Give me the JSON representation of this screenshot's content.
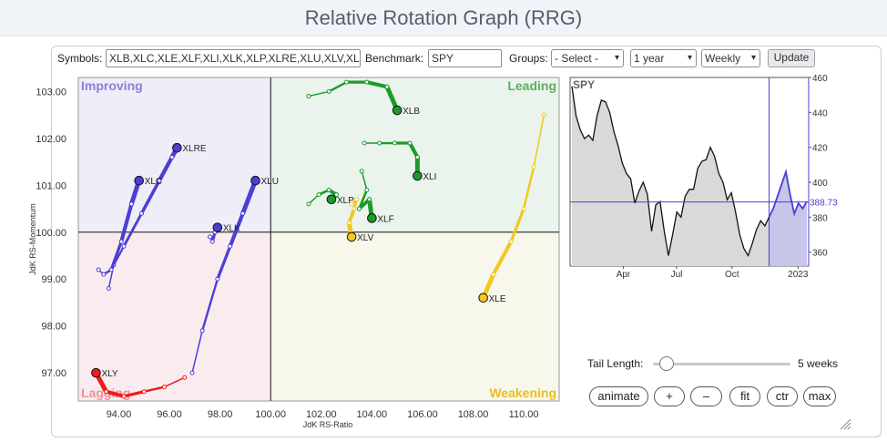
{
  "page": {
    "title": "Relative Rotation Graph (RRG)"
  },
  "toolbar": {
    "symbols_label": "Symbols:",
    "symbols_value": "XLB,XLC,XLE,XLF,XLI,XLK,XLP,XLRE,XLU,XLV,XL",
    "benchmark_label": "Benchmark:",
    "benchmark_value": "SPY",
    "groups_label": "Groups:",
    "groups_value": "- Select -",
    "period_value": "1 year",
    "interval_value": "Weekly",
    "update_label": "Update"
  },
  "controls": {
    "tail_length_label": "Tail Length:",
    "tail_length_value": "5 weeks",
    "tail_length_fraction": 0.1,
    "animate_label": "animate",
    "plus_label": "+",
    "minus_label": "–",
    "fit_label": "fit",
    "ctr_label": "ctr",
    "max_label": "max"
  },
  "colors": {
    "improving": "#efedf8",
    "leading": "#eaf4ec",
    "weakening": "#f7f7ec",
    "lagging": "#faecee",
    "improving_text": "#8a80d8",
    "leading_text": "#5cae60",
    "weakening_text": "#e8c020",
    "lagging_text": "#f0909a",
    "blue": "#4b3fd6",
    "green": "#1d9a2a",
    "yellow": "#f2c81e",
    "red": "#ee1c1c"
  },
  "chart_data": [
    {
      "type": "scatter",
      "subtype": "rrg",
      "xlabel": "JdK RS-Ratio",
      "ylabel": "JdK RS-Momentum",
      "xlim": [
        92.4,
        111.4
      ],
      "ylim": [
        96.4,
        103.3
      ],
      "xticks": [
        "94.00",
        "96.00",
        "98.00",
        "100.00",
        "102.00",
        "104.00",
        "106.00",
        "108.00",
        "110.00"
      ],
      "yticks": [
        "97.00",
        "98.00",
        "99.00",
        "100.00",
        "101.00",
        "102.00",
        "103.00"
      ],
      "quadrants": {
        "improving": "Improving",
        "leading": "Leading",
        "weakening": "Weakening",
        "lagging": "Lagging"
      },
      "series": [
        {
          "name": "XLRE",
          "color": "blue",
          "points": [
            [
              93.6,
              98.8
            ],
            [
              93.8,
              99.3
            ],
            [
              94.2,
              99.7
            ],
            [
              94.9,
              100.4
            ],
            [
              95.6,
              101.1
            ],
            [
              96.1,
              101.6
            ],
            [
              96.3,
              101.8
            ]
          ]
        },
        {
          "name": "XLC",
          "color": "blue",
          "points": [
            [
              93.2,
              99.2
            ],
            [
              93.4,
              99.1
            ],
            [
              93.7,
              99.2
            ],
            [
              94.1,
              99.8
            ],
            [
              94.5,
              100.6
            ],
            [
              94.8,
              101.1
            ]
          ]
        },
        {
          "name": "XLU",
          "color": "blue",
          "points": [
            [
              96.9,
              97.0
            ],
            [
              97.3,
              97.9
            ],
            [
              97.9,
              99.0
            ],
            [
              98.4,
              99.7
            ],
            [
              98.9,
              100.4
            ],
            [
              99.4,
              101.1
            ]
          ]
        },
        {
          "name": "XLK",
          "color": "blue",
          "points": [
            [
              97.6,
              99.9
            ],
            [
              97.7,
              99.8
            ],
            [
              97.8,
              100.0
            ],
            [
              97.9,
              100.1
            ]
          ]
        },
        {
          "name": "XLB",
          "color": "green",
          "points": [
            [
              101.5,
              102.9
            ],
            [
              102.3,
              103.0
            ],
            [
              103.0,
              103.2
            ],
            [
              103.8,
              103.2
            ],
            [
              104.6,
              103.1
            ],
            [
              105.0,
              102.6
            ]
          ]
        },
        {
          "name": "XLI",
          "color": "green",
          "points": [
            [
              103.7,
              101.9
            ],
            [
              104.3,
              101.9
            ],
            [
              104.9,
              101.9
            ],
            [
              105.5,
              101.9
            ],
            [
              105.8,
              101.6
            ],
            [
              105.8,
              101.2
            ]
          ]
        },
        {
          "name": "XLP",
          "color": "green",
          "points": [
            [
              101.5,
              100.6
            ],
            [
              101.9,
              100.8
            ],
            [
              102.3,
              100.9
            ],
            [
              102.6,
              100.8
            ],
            [
              102.4,
              100.7
            ]
          ]
        },
        {
          "name": "XLF",
          "color": "green",
          "points": [
            [
              103.6,
              101.3
            ],
            [
              103.8,
              100.9
            ],
            [
              103.5,
              100.5
            ],
            [
              103.9,
              100.7
            ],
            [
              104.0,
              100.3
            ]
          ]
        },
        {
          "name": "XLV",
          "color": "yellow",
          "points": [
            [
              103.2,
              100.6
            ],
            [
              103.4,
              100.7
            ],
            [
              103.3,
              100.5
            ],
            [
              103.1,
              100.2
            ],
            [
              103.2,
              99.9
            ]
          ]
        },
        {
          "name": "XLE",
          "color": "yellow",
          "points": [
            [
              110.8,
              102.5
            ],
            [
              110.4,
              101.4
            ],
            [
              110.0,
              100.5
            ],
            [
              109.5,
              99.8
            ],
            [
              108.8,
              99.1
            ],
            [
              108.4,
              98.6
            ]
          ]
        },
        {
          "name": "XLY",
          "color": "red",
          "points": [
            [
              96.6,
              96.9
            ],
            [
              95.8,
              96.7
            ],
            [
              95.0,
              96.6
            ],
            [
              94.2,
              96.5
            ],
            [
              93.5,
              96.6
            ],
            [
              93.1,
              97.0
            ]
          ]
        }
      ]
    },
    {
      "type": "line",
      "title": "SPY",
      "xticks": [
        "Apr",
        "Jul",
        "Oct",
        "2023"
      ],
      "yticks": [
        "460",
        "440",
        "420",
        "400",
        "380",
        "360"
      ],
      "ylim": [
        352,
        460
      ],
      "last_value_label": "388.73",
      "last_value": 388.73,
      "highlight_from_index": 47,
      "values": [
        455,
        438,
        430,
        425,
        427,
        424,
        438,
        447,
        446,
        440,
        429,
        421,
        411,
        405,
        402,
        388,
        395,
        400,
        393,
        372,
        387,
        389,
        372,
        358,
        370,
        383,
        380,
        392,
        396,
        396,
        408,
        412,
        413,
        420,
        415,
        405,
        400,
        390,
        394,
        383,
        370,
        362,
        358,
        365,
        373,
        378,
        375,
        380,
        385,
        392,
        399,
        406,
        393,
        382,
        388,
        385,
        389
      ]
    }
  ]
}
